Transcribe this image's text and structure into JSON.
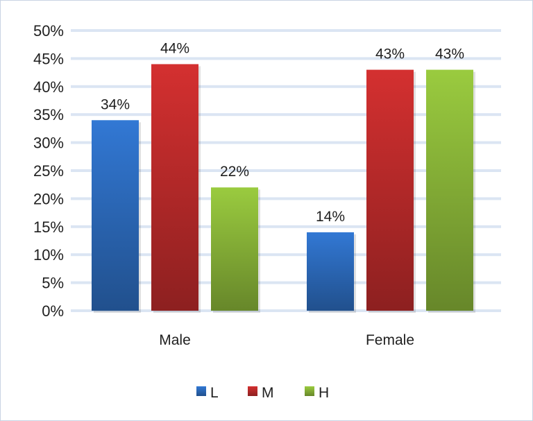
{
  "chart_data": {
    "type": "bar",
    "categories": [
      "Male",
      "Female"
    ],
    "series": [
      {
        "name": "L",
        "color": "#2e6fc4",
        "values": [
          34,
          14
        ],
        "labels": [
          "34%",
          "14%"
        ]
      },
      {
        "name": "M",
        "color": "#c42c2c",
        "values": [
          44,
          43
        ],
        "labels": [
          "44%",
          "43%"
        ]
      },
      {
        "name": "H",
        "color": "#8fbc3a",
        "values": [
          22,
          43
        ],
        "labels": [
          "22%",
          "43%"
        ]
      }
    ],
    "ylim": [
      0,
      50
    ],
    "yticks": [
      "0%",
      "5%",
      "10%",
      "15%",
      "20%",
      "25%",
      "30%",
      "35%",
      "40%",
      "45%",
      "50%"
    ],
    "title": "",
    "xlabel": "",
    "ylabel": "",
    "grid": true,
    "legend_position": "bottom"
  }
}
